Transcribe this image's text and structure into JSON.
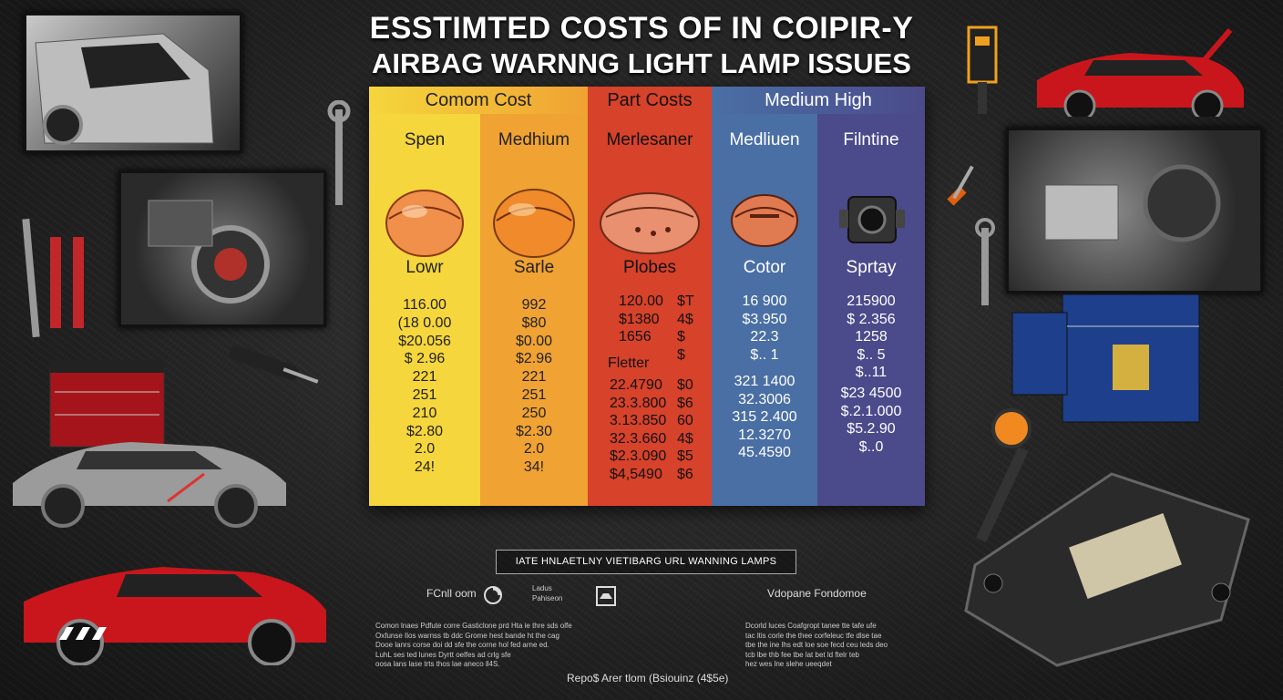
{
  "title": {
    "line1": "ESSTIMTED COSTS OF IN COIPIR-Y",
    "line2": "AIRBAG WARNNG LIGHT LAMP ISSUES"
  },
  "table": {
    "group_headers": [
      "Comom Cost",
      "Part Costs",
      "Medium High"
    ],
    "columns": [
      {
        "name": "Spen",
        "sub": "Lowr",
        "part_color": "#f0904a",
        "values": [
          "116.00",
          "(18 0.00",
          "$20.056",
          "$ 2.96",
          "221",
          "251",
          "210",
          "$2.80",
          "2.0",
          "24!"
        ]
      },
      {
        "name": "Medhium",
        "sub": "Sarle",
        "part_color": "#f08a2a",
        "values": [
          "992",
          "$80",
          "$0.00",
          "$2.96",
          "221",
          "251",
          "250",
          "$2.30",
          "2.0",
          "34!"
        ]
      },
      {
        "name": "Merlesaner",
        "sub": "Plobes",
        "part_color": "#e89070",
        "values_top": [
          "120.00",
          "$1380",
          "1656"
        ],
        "fletter": "Fletter",
        "values_bottom": [
          "22.4790",
          "23.3.800",
          "3.13.850",
          "32.3.660",
          "$2.3.090",
          "$4,5490"
        ],
        "right_top": [
          "$T",
          "4$",
          "$",
          "$"
        ],
        "right_bottom": [
          "$0",
          "$6",
          "60",
          "4$",
          "$5",
          "$6"
        ]
      },
      {
        "name": "Medliuen",
        "sub": "Cotor",
        "part_color": "#e07a50",
        "values_top": [
          "16 900",
          "$3.950",
          "22.3",
          "$.. 1"
        ],
        "values_bottom": [
          "321 1400",
          "32.3006",
          "315 2.400",
          "12.3270",
          "45.4590"
        ]
      },
      {
        "name": "Filntine",
        "sub": "Sprtay",
        "part_color": "#333333",
        "values_top": [
          "215900",
          "$ 2.356",
          "1258",
          "$.. 5",
          "$..11"
        ],
        "values_bottom": [
          "$23 4500",
          "$.2.1.000",
          "$5.2.90",
          "$..0"
        ]
      }
    ]
  },
  "banner": "IATE HNLAETLNY VIETIBARG URL WANNING LAMPS",
  "footer": {
    "left_label": "FCnll oom",
    "badge_text": "Ladus\nPahiseon",
    "right_label": "Vdopane Fondomoe",
    "left_para": [
      "Comon lnaes Pdfute corre Gasticlone prd Hta ie thre sds olfe",
      "Oxfunse Ilos warnss tb ddc Grome hest bande ht the cag",
      "Dooe lanrs corse doi dd sfe the corne hol fed arne ed.",
      "LuhL ses ted lunes Dyrtt oelfes ad crlg sfe",
      "oosa lans lase trts thos lae aneco ll4S."
    ],
    "right_para": [
      "Dcorld luces Coafgropt tanee tte tafe ufe",
      "tac ltis corle the thee corfeleuc tfe dlse tae",
      "tbe the ine lhs edt loe soe fecd ceu leds deo",
      "tcb lbe thb fee tbe lat bet ld ftelr teb",
      "hez wes lne slehe ueeqdet"
    ],
    "caption": "Repo$ Arer tlom (Bsiouinz (4$5e)"
  },
  "colors": {
    "yellow": "#f5d63c",
    "orange": "#f0a233",
    "red": "#d6422a",
    "blue": "#4a6fa5",
    "purple": "#4b4a8a"
  }
}
